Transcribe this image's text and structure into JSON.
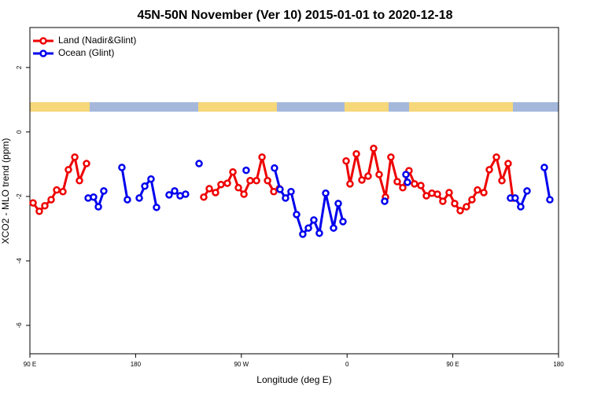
{
  "chart_data": {
    "type": "line",
    "title": "45N-50N November (Ver 10)   2015-01-01 to 2020-12-18",
    "x_label": "Longitude (deg E)",
    "y_label": "XCO2 - MLO trend (ppm)",
    "xlim": [
      -270,
      180
    ],
    "xticks": [
      {
        "value": -270,
        "label": "90 E"
      },
      {
        "value": -180,
        "label": "180"
      },
      {
        "value": -90,
        "label": "90 W"
      },
      0,
      {
        "value": 90,
        "label": "90 E"
      },
      {
        "value": 180,
        "label": "180"
      }
    ],
    "ylim": [
      -6.88,
      3.24
    ],
    "yticks": [
      2,
      0,
      -2,
      -4,
      -6
    ],
    "legend": "top-left",
    "series": [
      {
        "name": "Land (Nadir&Glint)",
        "color": "#ee0000",
        "x": [
          -267.3,
          -262.0,
          -257.3,
          -251.9,
          -247.2,
          -241.9,
          -237.2,
          -231.8,
          -227.8,
          -221.8,
          null,
          -122.0,
          -117.3,
          -112.0,
          -107.3,
          -101.9,
          -97.2,
          -92.5,
          -87.8,
          -82.5,
          -77.1,
          -72.4,
          -67.7,
          -62.4,
          -57.7,
          null,
          -0.8,
          2.5,
          7.9,
          12.6,
          17.9,
          22.6,
          27.3,
          32.7,
          37.3,
          42.7,
          47.4,
          52.7,
          57.4,
          62.8,
          67.5,
          72.2,
          76.9,
          81.5,
          86.9,
          91.6,
          96.3,
          101.6,
          106.3,
          111.0,
          116.4,
          121.1,
          127.1,
          131.8,
          137.1,
          141.1
        ],
        "values": [
          -2.2,
          -2.46,
          -2.29,
          -2.1,
          -1.8,
          -1.85,
          -1.17,
          -0.78,
          -1.51,
          -0.98,
          null,
          -2.02,
          -1.76,
          -1.88,
          -1.63,
          -1.59,
          -1.24,
          -1.73,
          -1.93,
          -1.51,
          -1.51,
          -0.78,
          -1.51,
          -1.85,
          -1.76,
          null,
          -0.9,
          -1.61,
          -0.68,
          -1.49,
          -1.37,
          -0.51,
          -1.32,
          -2.02,
          -0.78,
          -1.54,
          -1.73,
          -1.2,
          -1.61,
          -1.66,
          -1.98,
          -1.9,
          -1.93,
          -2.15,
          -1.88,
          -2.22,
          -2.44,
          -2.32,
          -2.1,
          -1.8,
          -1.88,
          -1.17,
          -0.78,
          -1.51,
          -0.98,
          -2.05
        ]
      },
      {
        "name": "Ocean (Glint)",
        "color": "#0000ee",
        "x": [
          -220.4,
          -215.8,
          -211.7,
          -207.1,
          null,
          -191.7,
          -187.0,
          null,
          -176.9,
          -172.2,
          -166.9,
          -162.2,
          null,
          -151.5,
          -146.8,
          -142.1,
          -137.5,
          null,
          -126.0,
          null,
          -85.9,
          null,
          -61.8,
          -57.1,
          -52.4,
          -47.7,
          -43.0,
          -37.7,
          -32.9,
          -28.3,
          -23.6,
          -18.2,
          -11.5,
          -7.5,
          -3.5,
          null,
          32.0,
          null,
          50.1,
          51.4,
          null,
          139.1,
          143.1,
          147.8,
          153.2,
          null,
          167.9,
          172.6
        ],
        "values": [
          -2.05,
          -2.02,
          -2.32,
          -1.83,
          null,
          -1.1,
          -2.1,
          null,
          -2.05,
          -1.68,
          -1.46,
          -2.34,
          null,
          -1.95,
          -1.83,
          -1.98,
          -1.93,
          null,
          -0.98,
          null,
          -1.19,
          null,
          -1.12,
          -1.78,
          -2.05,
          -1.85,
          -2.56,
          -3.17,
          -2.98,
          -2.73,
          -3.14,
          -1.9,
          -2.98,
          -2.22,
          -2.78,
          null,
          -2.15,
          null,
          -1.32,
          -1.56,
          null,
          -2.05,
          -2.05,
          -2.32,
          -1.83,
          null,
          -1.1,
          -2.1
        ]
      }
    ]
  }
}
